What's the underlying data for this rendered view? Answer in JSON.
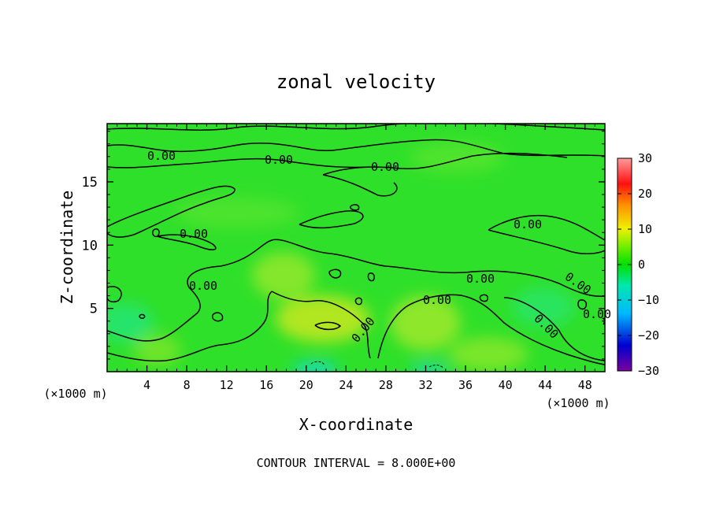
{
  "chart_data": {
    "type": "heatmap",
    "title": "zonal velocity",
    "xlabel": "X-coordinate",
    "ylabel": "Z-coordinate",
    "x_unit": "(×1000 m)",
    "y_unit": "(×1000 m)",
    "xlim": [
      0,
      50
    ],
    "ylim": [
      0,
      19.6
    ],
    "x_ticks": [
      "4",
      "8",
      "12",
      "16",
      "20",
      "24",
      "28",
      "32",
      "36",
      "40",
      "44",
      "48"
    ],
    "y_ticks": [
      "5",
      "10",
      "15"
    ],
    "colorbar": {
      "range": [
        -30,
        30
      ],
      "ticks": [
        "30",
        "20",
        "10",
        "0",
        "−10",
        "−20",
        "−30"
      ],
      "colormap": "rainbow"
    },
    "contour_labels": [
      "0.00",
      "0.00",
      "0.00",
      "0.00",
      "0.00",
      "0.00",
      "0.00",
      "0.00",
      "0.00",
      "0.00",
      "0.00",
      "0.00"
    ],
    "footer": "CONTOUR INTERVAL = 8.000E+00",
    "field_range_approx": [
      -4,
      6
    ]
  }
}
